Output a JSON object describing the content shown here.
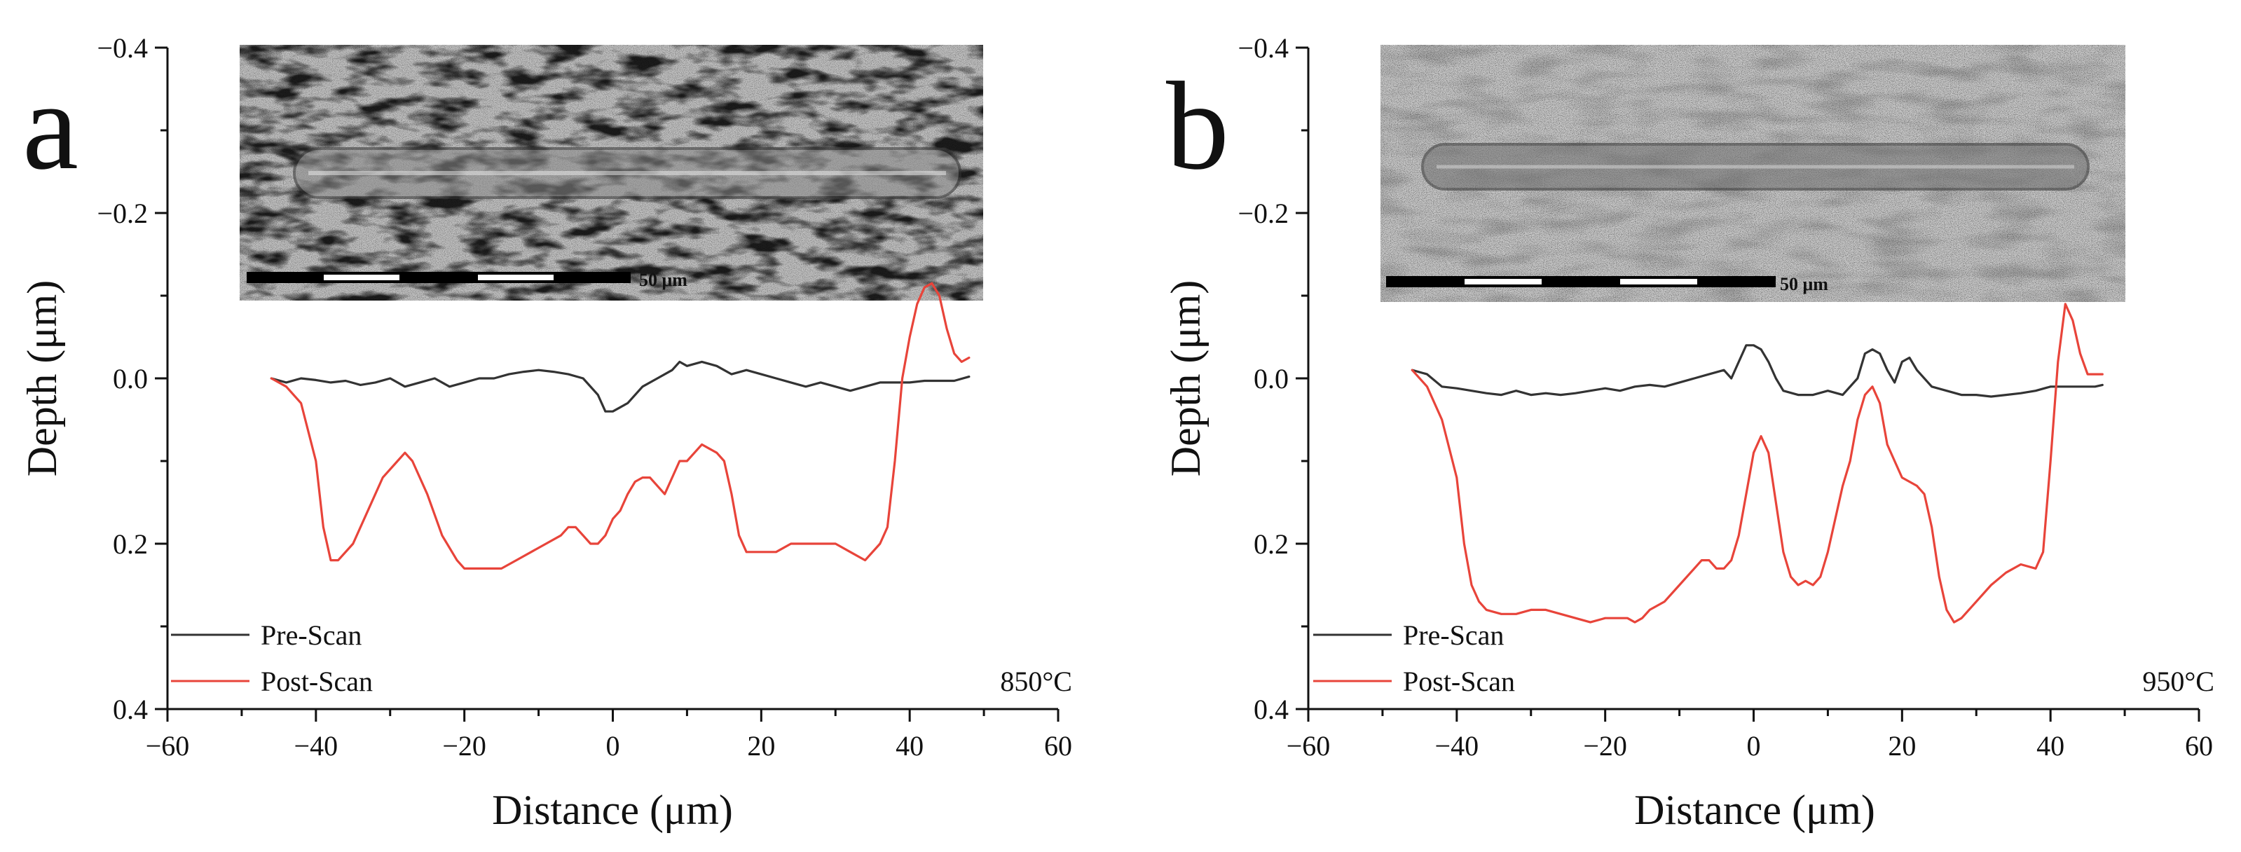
{
  "chart_data": [
    {
      "type": "line",
      "panel_label": "a",
      "temperature_label": "850°C",
      "xlabel": "Distance (μm)",
      "ylabel": "Depth (μm)",
      "xlim": [
        -60,
        60
      ],
      "ylim": [
        -0.4,
        0.4
      ],
      "y_inverted": true,
      "xticks": [
        -60,
        -40,
        -20,
        0,
        20,
        40,
        60
      ],
      "yticks": [
        -0.4,
        -0.2,
        0.0,
        0.2,
        0.4
      ],
      "xtick_labels": [
        "−60",
        "−40",
        "−20",
        "0",
        "20",
        "40",
        "60"
      ],
      "ytick_labels": [
        "−0.4",
        "−0.2",
        "0.0",
        "0.2",
        "0.4"
      ],
      "grid": false,
      "legend_position": "bottom-left",
      "scale_bar_label": "50 μm",
      "series": [
        {
          "name": "Pre-Scan",
          "color": "#333333",
          "x": [
            -46,
            -44,
            -42,
            -40,
            -38,
            -36,
            -34,
            -32,
            -30,
            -28,
            -26,
            -24,
            -22,
            -20,
            -18,
            -16,
            -14,
            -12,
            -10,
            -8,
            -6,
            -4,
            -2,
            -1,
            0,
            1,
            2,
            4,
            6,
            8,
            9,
            10,
            12,
            14,
            16,
            18,
            20,
            22,
            24,
            26,
            28,
            30,
            32,
            34,
            36,
            38,
            40,
            42,
            44,
            46,
            48
          ],
          "values": [
            0.0,
            0.005,
            0.0,
            0.002,
            0.005,
            0.003,
            0.008,
            0.005,
            0.0,
            0.01,
            0.005,
            0.0,
            0.01,
            0.005,
            0.0,
            0.0,
            -0.005,
            -0.008,
            -0.01,
            -0.008,
            -0.005,
            0.0,
            0.02,
            0.04,
            0.04,
            0.035,
            0.03,
            0.01,
            0.0,
            -0.01,
            -0.02,
            -0.015,
            -0.02,
            -0.015,
            -0.005,
            -0.01,
            -0.005,
            0.0,
            0.005,
            0.01,
            0.005,
            0.01,
            0.015,
            0.01,
            0.005,
            0.005,
            0.005,
            0.003,
            0.003,
            0.003,
            -0.002
          ]
        },
        {
          "name": "Post-Scan",
          "color": "#e8443a",
          "x": [
            -46,
            -44,
            -42,
            -40,
            -39,
            -38,
            -37,
            -35,
            -33,
            -31,
            -29,
            -28,
            -27,
            -25,
            -23,
            -21,
            -20,
            -19,
            -17,
            -15,
            -13,
            -11,
            -9,
            -7,
            -6,
            -5,
            -4,
            -3,
            -2,
            -1,
            0,
            1,
            2,
            3,
            4,
            5,
            6,
            7,
            8,
            9,
            10,
            11,
            12,
            13,
            14,
            15,
            16,
            17,
            18,
            20,
            22,
            24,
            26,
            28,
            30,
            32,
            34,
            36,
            37,
            38,
            39,
            40,
            41,
            42,
            43,
            44,
            45,
            46,
            47,
            48
          ],
          "values": [
            0.0,
            0.01,
            0.03,
            0.1,
            0.18,
            0.22,
            0.22,
            0.2,
            0.16,
            0.12,
            0.1,
            0.09,
            0.1,
            0.14,
            0.19,
            0.22,
            0.23,
            0.23,
            0.23,
            0.23,
            0.22,
            0.21,
            0.2,
            0.19,
            0.18,
            0.18,
            0.19,
            0.2,
            0.2,
            0.19,
            0.17,
            0.16,
            0.14,
            0.125,
            0.12,
            0.12,
            0.13,
            0.14,
            0.12,
            0.1,
            0.1,
            0.09,
            0.08,
            0.085,
            0.09,
            0.1,
            0.14,
            0.19,
            0.21,
            0.21,
            0.21,
            0.2,
            0.2,
            0.2,
            0.2,
            0.21,
            0.22,
            0.2,
            0.18,
            0.1,
            0.0,
            -0.05,
            -0.09,
            -0.11,
            -0.115,
            -0.1,
            -0.06,
            -0.03,
            -0.02,
            -0.025
          ]
        }
      ]
    },
    {
      "type": "line",
      "panel_label": "b",
      "temperature_label": "950°C",
      "xlabel": "Distance (μm)",
      "ylabel": "Depth (μm)",
      "xlim": [
        -60,
        60
      ],
      "ylim": [
        -0.4,
        0.4
      ],
      "y_inverted": true,
      "xticks": [
        -60,
        -40,
        -20,
        0,
        20,
        40,
        60
      ],
      "yticks": [
        -0.4,
        -0.2,
        0.0,
        0.2,
        0.4
      ],
      "xtick_labels": [
        "−60",
        "−40",
        "−20",
        "0",
        "20",
        "40",
        "60"
      ],
      "ytick_labels": [
        "−0.4",
        "−0.2",
        "0.0",
        "0.2",
        "0.4"
      ],
      "grid": false,
      "legend_position": "bottom-left",
      "scale_bar_label": "50 μm",
      "series": [
        {
          "name": "Pre-Scan",
          "color": "#333333",
          "x": [
            -46,
            -44,
            -42,
            -40,
            -38,
            -36,
            -34,
            -32,
            -30,
            -28,
            -26,
            -24,
            -22,
            -20,
            -18,
            -16,
            -14,
            -12,
            -10,
            -8,
            -6,
            -4,
            -3,
            -2,
            -1,
            0,
            1,
            2,
            3,
            4,
            6,
            8,
            10,
            12,
            14,
            15,
            16,
            17,
            18,
            19,
            20,
            21,
            22,
            24,
            26,
            28,
            30,
            32,
            34,
            36,
            38,
            40,
            42,
            44,
            46,
            47
          ],
          "values": [
            -0.01,
            -0.005,
            0.01,
            0.012,
            0.015,
            0.018,
            0.02,
            0.015,
            0.02,
            0.018,
            0.02,
            0.018,
            0.015,
            0.012,
            0.015,
            0.01,
            0.008,
            0.01,
            0.005,
            0.0,
            -0.005,
            -0.01,
            0.0,
            -0.02,
            -0.04,
            -0.04,
            -0.035,
            -0.02,
            0.0,
            0.015,
            0.02,
            0.02,
            0.015,
            0.02,
            0.0,
            -0.03,
            -0.035,
            -0.03,
            -0.01,
            0.005,
            -0.02,
            -0.025,
            -0.01,
            0.01,
            0.015,
            0.02,
            0.02,
            0.022,
            0.02,
            0.018,
            0.015,
            0.01,
            0.01,
            0.01,
            0.01,
            0.008
          ]
        },
        {
          "name": "Post-Scan",
          "color": "#e8443a",
          "x": [
            -46,
            -44,
            -42,
            -40,
            -39,
            -38,
            -37,
            -36,
            -34,
            -32,
            -30,
            -28,
            -26,
            -24,
            -22,
            -20,
            -18,
            -17,
            -16,
            -15,
            -14,
            -12,
            -10,
            -8,
            -7,
            -6,
            -5,
            -4,
            -3,
            -2,
            -1,
            0,
            1,
            2,
            3,
            4,
            5,
            6,
            7,
            8,
            9,
            10,
            11,
            12,
            13,
            14,
            15,
            16,
            17,
            18,
            19,
            20,
            21,
            22,
            23,
            24,
            25,
            26,
            27,
            28,
            30,
            32,
            34,
            36,
            38,
            39,
            40,
            41,
            42,
            43,
            44,
            45,
            46,
            47
          ],
          "values": [
            -0.01,
            0.01,
            0.05,
            0.12,
            0.2,
            0.25,
            0.27,
            0.28,
            0.285,
            0.285,
            0.28,
            0.28,
            0.285,
            0.29,
            0.295,
            0.29,
            0.29,
            0.29,
            0.295,
            0.29,
            0.28,
            0.27,
            0.25,
            0.23,
            0.22,
            0.22,
            0.23,
            0.23,
            0.22,
            0.19,
            0.14,
            0.09,
            0.07,
            0.09,
            0.15,
            0.21,
            0.24,
            0.25,
            0.245,
            0.25,
            0.24,
            0.21,
            0.17,
            0.13,
            0.1,
            0.05,
            0.02,
            0.01,
            0.03,
            0.08,
            0.1,
            0.12,
            0.125,
            0.13,
            0.14,
            0.18,
            0.24,
            0.28,
            0.295,
            0.29,
            0.27,
            0.25,
            0.235,
            0.225,
            0.23,
            0.21,
            0.1,
            -0.02,
            -0.09,
            -0.07,
            -0.03,
            -0.005,
            -0.005,
            -0.005
          ]
        }
      ]
    }
  ]
}
